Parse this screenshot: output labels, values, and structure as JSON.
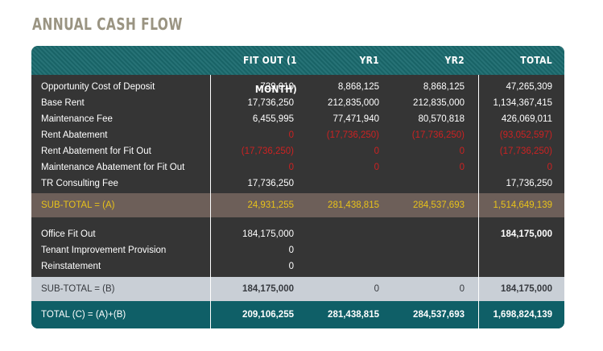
{
  "title": "ANNUAL CASH FLOW",
  "headers": [
    "",
    "FIT OUT (1 MONTH)",
    "YR1",
    "YR2",
    "TOTAL"
  ],
  "section1": [
    {
      "label": "Opportunity Cost of Deposit",
      "fitout": "739,010",
      "yr1": "8,868,125",
      "yr2": "8,868,125",
      "total": "47,265,309"
    },
    {
      "label": "Base Rent",
      "fitout": "17,736,250",
      "yr1": "212,835,000",
      "yr2": "212,835,000",
      "total": "1,134,367,415"
    },
    {
      "label": "Maintenance Fee",
      "fitout": "6,455,995",
      "yr1": "77,471,940",
      "yr2": "80,570,818",
      "total": "426,069,011"
    },
    {
      "label": "Rent Abatement",
      "fitout": "0",
      "yr1": "(17,736,250)",
      "yr2": "(17,736,250)",
      "total": "(93,052,597)"
    },
    {
      "label": "Rent Abatement for Fit Out",
      "fitout": "(17,736,250)",
      "yr1": "0",
      "yr2": "0",
      "total": "(17,736,250)"
    },
    {
      "label": "Maintenance Abatement for Fit Out",
      "fitout": "0",
      "yr1": "0",
      "yr2": "0",
      "total": "0"
    },
    {
      "label": "TR Consulting Fee",
      "fitout": "17,736,250",
      "yr1": "",
      "yr2": "",
      "total": "17,736,250"
    }
  ],
  "subtotal_a": {
    "label": "SUB-TOTAL = (A)",
    "fitout": "24,931,255",
    "yr1": "281,438,815",
    "yr2": "284,537,693",
    "total": "1,514,649,139"
  },
  "section2": [
    {
      "label": "Office Fit Out",
      "fitout": "184,175,000",
      "yr1": "",
      "yr2": "",
      "total": "184,175,000"
    },
    {
      "label": "Tenant Improvement Provision",
      "fitout": "0",
      "yr1": "",
      "yr2": "",
      "total": ""
    },
    {
      "label": "Reinstatement",
      "fitout": "0",
      "yr1": "",
      "yr2": "",
      "total": ""
    }
  ],
  "subtotal_b": {
    "label": "SUB-TOTAL = (B)",
    "fitout": "184,175,000",
    "yr1": "0",
    "yr2": "0",
    "total": "184,175,000"
  },
  "total_c": {
    "label": "TOTAL (C) = (A)+(B)",
    "fitout": "209,106,255",
    "yr1": "281,438,815",
    "yr2": "284,537,693",
    "total": "1,698,824,139"
  },
  "colors": {
    "header": "#1b6b6f",
    "body": "#353535",
    "subtotal_a": "#6d5f59",
    "subtotal_a_text": "#e8c21a",
    "subtotal_b": "#c9cfd6",
    "total": "#0f5f67",
    "negative": "#cc2222",
    "title": "#9a9482"
  }
}
